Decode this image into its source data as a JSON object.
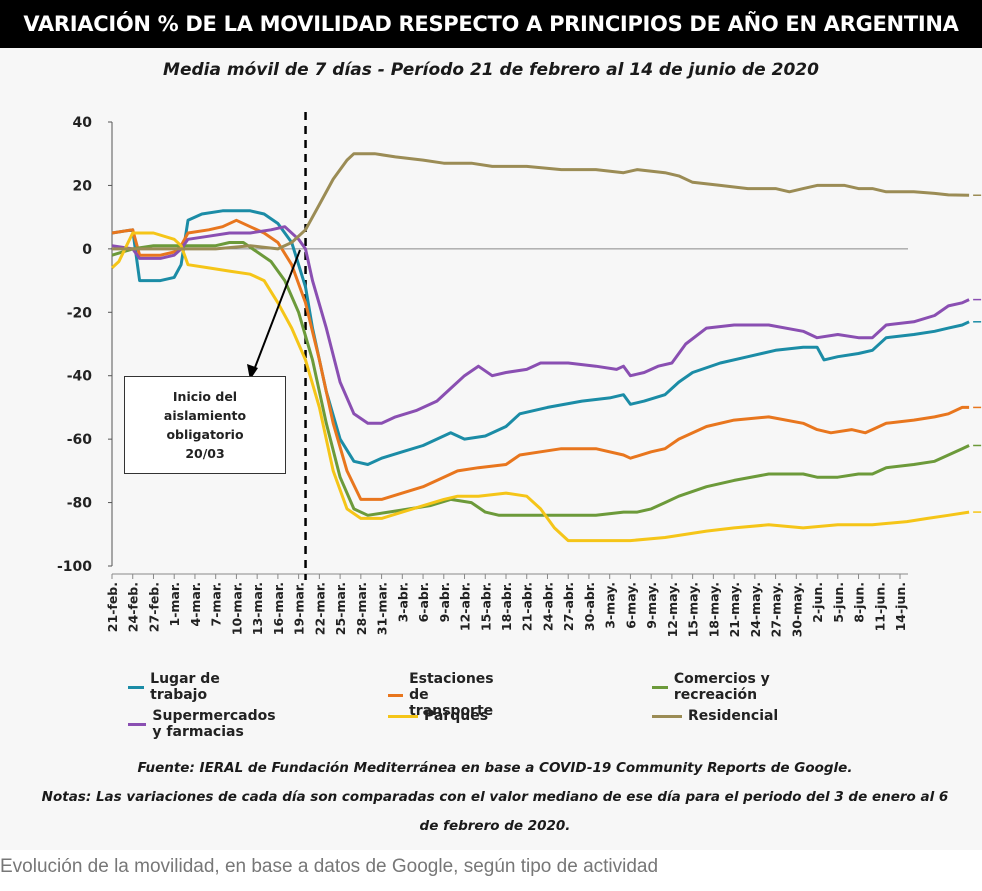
{
  "header": {
    "title": "VARIACIÓN % DE LA MOVILIDAD RESPECTO A PRINCIPIOS DE AÑO EN ARGENTINA"
  },
  "source": {
    "line1": "Fuente: IERAL de Fundación Mediterránea en base a COVID-19 Community Reports de Google.",
    "line2": "Notas: Las variaciones de cada día son comparadas con el valor mediano de ese día para el periodo del 3 de enero al 6",
    "line3": "de febrero de 2020."
  },
  "caption": "Evolución de la movilidad, en base a datos de Google, según tipo de actividad",
  "chart_data": {
    "type": "line",
    "title": "",
    "subtitle": "Media móvil de 7 días - Período 21 de febrero al 14 de junio de 2020",
    "xlabel": "",
    "ylabel": "",
    "ylim": [
      -100,
      40
    ],
    "yticks": [
      "40",
      "20",
      "0",
      "-20",
      "-40",
      "-60",
      "-80",
      "-100"
    ],
    "ytick_values": [
      40,
      20,
      0,
      -20,
      -40,
      -60,
      -80,
      -100
    ],
    "grid": false,
    "legend_position": "bottom",
    "xtick_labels": [
      "21-feb.",
      "24-feb.",
      "27-feb.",
      "1-mar.",
      "4-mar.",
      "7-mar.",
      "10-mar.",
      "13-mar.",
      "16-mar.",
      "19-mar.",
      "22-mar.",
      "25-mar.",
      "28-mar.",
      "31-mar.",
      "3-abr.",
      "6-abr.",
      "9-abr.",
      "12-abr.",
      "15-abr.",
      "18-abr.",
      "21-abr.",
      "24-abr.",
      "27-abr.",
      "30-abr.",
      "3-may.",
      "6-may.",
      "9-may.",
      "12-may.",
      "15-may.",
      "18-may.",
      "21-may.",
      "24-may.",
      "27-may.",
      "30-may.",
      "2-jun.",
      "5-jun.",
      "8-jun.",
      "11-jun.",
      "14-jun."
    ],
    "annotation": {
      "text_line1": "Inicio del",
      "text_line2": "aislamiento",
      "text_line3": "obligatorio 20/03",
      "vline_day": 28
    },
    "series": [
      {
        "name": "Lugar de trabajo",
        "color": "#1b8ca6",
        "end_label": "-23,0",
        "points": [
          [
            0,
            5
          ],
          [
            3,
            6
          ],
          [
            4,
            -10
          ],
          [
            7,
            -10
          ],
          [
            9,
            -9
          ],
          [
            10,
            -5
          ],
          [
            11,
            9
          ],
          [
            13,
            11
          ],
          [
            16,
            12
          ],
          [
            20,
            12
          ],
          [
            22,
            11
          ],
          [
            24,
            8
          ],
          [
            26,
            2
          ],
          [
            28,
            -12
          ],
          [
            29,
            -25
          ],
          [
            31,
            -45
          ],
          [
            33,
            -60
          ],
          [
            35,
            -67
          ],
          [
            37,
            -68
          ],
          [
            39,
            -66
          ],
          [
            42,
            -64
          ],
          [
            45,
            -62
          ],
          [
            47,
            -60
          ],
          [
            49,
            -58
          ],
          [
            51,
            -60
          ],
          [
            54,
            -59
          ],
          [
            57,
            -56
          ],
          [
            59,
            -52
          ],
          [
            63,
            -50
          ],
          [
            68,
            -48
          ],
          [
            72,
            -47
          ],
          [
            74,
            -46
          ],
          [
            75,
            -49
          ],
          [
            77,
            -48
          ],
          [
            80,
            -46
          ],
          [
            82,
            -42
          ],
          [
            84,
            -39
          ],
          [
            88,
            -36
          ],
          [
            92,
            -34
          ],
          [
            96,
            -32
          ],
          [
            100,
            -31
          ],
          [
            102,
            -31
          ],
          [
            103,
            -35
          ],
          [
            105,
            -34
          ],
          [
            108,
            -33
          ],
          [
            110,
            -32
          ],
          [
            112,
            -28
          ],
          [
            116,
            -27
          ],
          [
            119,
            -26
          ],
          [
            121,
            -25
          ],
          [
            123,
            -24
          ],
          [
            124,
            -23
          ]
        ]
      },
      {
        "name": "Estaciones de transporte",
        "color": "#e8761e",
        "end_label": "-50,1",
        "points": [
          [
            0,
            5
          ],
          [
            3,
            6
          ],
          [
            4,
            -2
          ],
          [
            7,
            -2
          ],
          [
            9,
            -1
          ],
          [
            10,
            1
          ],
          [
            11,
            5
          ],
          [
            14,
            6
          ],
          [
            16,
            7
          ],
          [
            18,
            9
          ],
          [
            20,
            7
          ],
          [
            22,
            5
          ],
          [
            24,
            2
          ],
          [
            26,
            -5
          ],
          [
            28,
            -17
          ],
          [
            30,
            -35
          ],
          [
            32,
            -55
          ],
          [
            34,
            -70
          ],
          [
            36,
            -79
          ],
          [
            39,
            -79
          ],
          [
            42,
            -77
          ],
          [
            45,
            -75
          ],
          [
            48,
            -72
          ],
          [
            50,
            -70
          ],
          [
            53,
            -69
          ],
          [
            57,
            -68
          ],
          [
            59,
            -65
          ],
          [
            62,
            -64
          ],
          [
            65,
            -63
          ],
          [
            70,
            -63
          ],
          [
            74,
            -65
          ],
          [
            75,
            -66
          ],
          [
            78,
            -64
          ],
          [
            80,
            -63
          ],
          [
            82,
            -60
          ],
          [
            86,
            -56
          ],
          [
            90,
            -54
          ],
          [
            95,
            -53
          ],
          [
            100,
            -55
          ],
          [
            102,
            -57
          ],
          [
            104,
            -58
          ],
          [
            107,
            -57
          ],
          [
            109,
            -58
          ],
          [
            110,
            -57
          ],
          [
            112,
            -55
          ],
          [
            116,
            -54
          ],
          [
            119,
            -53
          ],
          [
            121,
            -52
          ],
          [
            123,
            -50
          ],
          [
            124,
            -50
          ]
        ]
      },
      {
        "name": "Comercios y recreación",
        "color": "#6c9a3a",
        "end_label": "-62,0",
        "points": [
          [
            0,
            -2
          ],
          [
            3,
            0
          ],
          [
            6,
            1
          ],
          [
            9,
            1
          ],
          [
            12,
            1
          ],
          [
            15,
            1
          ],
          [
            17,
            2
          ],
          [
            19,
            2
          ],
          [
            21,
            -1
          ],
          [
            23,
            -4
          ],
          [
            25,
            -10
          ],
          [
            27,
            -20
          ],
          [
            29,
            -35
          ],
          [
            31,
            -55
          ],
          [
            33,
            -72
          ],
          [
            35,
            -82
          ],
          [
            37,
            -84
          ],
          [
            40,
            -83
          ],
          [
            43,
            -82
          ],
          [
            46,
            -81
          ],
          [
            49,
            -79
          ],
          [
            52,
            -80
          ],
          [
            54,
            -83
          ],
          [
            56,
            -84
          ],
          [
            60,
            -84
          ],
          [
            65,
            -84
          ],
          [
            70,
            -84
          ],
          [
            74,
            -83
          ],
          [
            76,
            -83
          ],
          [
            78,
            -82
          ],
          [
            80,
            -80
          ],
          [
            82,
            -78
          ],
          [
            86,
            -75
          ],
          [
            90,
            -73
          ],
          [
            95,
            -71
          ],
          [
            100,
            -71
          ],
          [
            102,
            -72
          ],
          [
            105,
            -72
          ],
          [
            108,
            -71
          ],
          [
            110,
            -71
          ],
          [
            112,
            -69
          ],
          [
            116,
            -68
          ],
          [
            119,
            -67
          ],
          [
            121,
            -65
          ],
          [
            123,
            -63
          ],
          [
            124,
            -62
          ]
        ]
      },
      {
        "name": "Supermercados y farmacias",
        "color": "#8a4fb2",
        "end_label": "-16,0",
        "points": [
          [
            0,
            1
          ],
          [
            3,
            0
          ],
          [
            4,
            -3
          ],
          [
            7,
            -3
          ],
          [
            9,
            -2
          ],
          [
            10,
            0
          ],
          [
            11,
            3
          ],
          [
            14,
            4
          ],
          [
            17,
            5
          ],
          [
            20,
            5
          ],
          [
            23,
            6
          ],
          [
            25,
            7
          ],
          [
            27,
            3
          ],
          [
            28,
            0
          ],
          [
            29,
            -10
          ],
          [
            31,
            -25
          ],
          [
            33,
            -42
          ],
          [
            35,
            -52
          ],
          [
            37,
            -55
          ],
          [
            39,
            -55
          ],
          [
            41,
            -53
          ],
          [
            44,
            -51
          ],
          [
            47,
            -48
          ],
          [
            49,
            -44
          ],
          [
            51,
            -40
          ],
          [
            53,
            -37
          ],
          [
            55,
            -40
          ],
          [
            57,
            -39
          ],
          [
            60,
            -38
          ],
          [
            62,
            -36
          ],
          [
            66,
            -36
          ],
          [
            70,
            -37
          ],
          [
            73,
            -38
          ],
          [
            74,
            -37
          ],
          [
            75,
            -40
          ],
          [
            77,
            -39
          ],
          [
            79,
            -37
          ],
          [
            81,
            -36
          ],
          [
            83,
            -30
          ],
          [
            86,
            -25
          ],
          [
            90,
            -24
          ],
          [
            95,
            -24
          ],
          [
            100,
            -26
          ],
          [
            102,
            -28
          ],
          [
            105,
            -27
          ],
          [
            108,
            -28
          ],
          [
            110,
            -28
          ],
          [
            112,
            -24
          ],
          [
            116,
            -23
          ],
          [
            119,
            -21
          ],
          [
            121,
            -18
          ],
          [
            123,
            -17
          ],
          [
            124,
            -16
          ]
        ]
      },
      {
        "name": "Parques",
        "color": "#f5c518",
        "end_label": "-83,0",
        "points": [
          [
            0,
            -6
          ],
          [
            1,
            -4
          ],
          [
            3,
            5
          ],
          [
            6,
            5
          ],
          [
            9,
            3
          ],
          [
            10,
            1
          ],
          [
            11,
            -5
          ],
          [
            14,
            -6
          ],
          [
            17,
            -7
          ],
          [
            20,
            -8
          ],
          [
            22,
            -10
          ],
          [
            24,
            -17
          ],
          [
            26,
            -25
          ],
          [
            28,
            -35
          ],
          [
            30,
            -50
          ],
          [
            32,
            -70
          ],
          [
            34,
            -82
          ],
          [
            36,
            -85
          ],
          [
            39,
            -85
          ],
          [
            42,
            -83
          ],
          [
            45,
            -81
          ],
          [
            48,
            -79
          ],
          [
            50,
            -78
          ],
          [
            53,
            -78
          ],
          [
            57,
            -77
          ],
          [
            60,
            -78
          ],
          [
            62,
            -82
          ],
          [
            64,
            -88
          ],
          [
            66,
            -92
          ],
          [
            70,
            -92
          ],
          [
            75,
            -92
          ],
          [
            80,
            -91
          ],
          [
            86,
            -89
          ],
          [
            90,
            -88
          ],
          [
            95,
            -87
          ],
          [
            100,
            -88
          ],
          [
            105,
            -87
          ],
          [
            110,
            -87
          ],
          [
            115,
            -86
          ],
          [
            118,
            -85
          ],
          [
            121,
            -84
          ],
          [
            124,
            -83
          ]
        ]
      },
      {
        "name": "Residencial",
        "color": "#9b8c55",
        "end_label": "16,9",
        "points": [
          [
            0,
            0
          ],
          [
            5,
            0
          ],
          [
            10,
            0
          ],
          [
            15,
            0
          ],
          [
            20,
            1
          ],
          [
            24,
            0
          ],
          [
            26,
            2
          ],
          [
            28,
            6
          ],
          [
            30,
            14
          ],
          [
            32,
            22
          ],
          [
            34,
            28
          ],
          [
            35,
            30
          ],
          [
            38,
            30
          ],
          [
            41,
            29
          ],
          [
            45,
            28
          ],
          [
            48,
            27
          ],
          [
            52,
            27
          ],
          [
            55,
            26
          ],
          [
            60,
            26
          ],
          [
            65,
            25
          ],
          [
            70,
            25
          ],
          [
            74,
            24
          ],
          [
            76,
            25
          ],
          [
            80,
            24
          ],
          [
            82,
            23
          ],
          [
            84,
            21
          ],
          [
            88,
            20
          ],
          [
            92,
            19
          ],
          [
            96,
            19
          ],
          [
            98,
            18
          ],
          [
            100,
            19
          ],
          [
            102,
            20
          ],
          [
            104,
            20
          ],
          [
            106,
            20
          ],
          [
            108,
            19
          ],
          [
            110,
            19
          ],
          [
            112,
            18
          ],
          [
            116,
            18
          ],
          [
            119,
            17.5
          ],
          [
            121,
            17
          ],
          [
            124,
            16.9
          ]
        ]
      }
    ]
  }
}
